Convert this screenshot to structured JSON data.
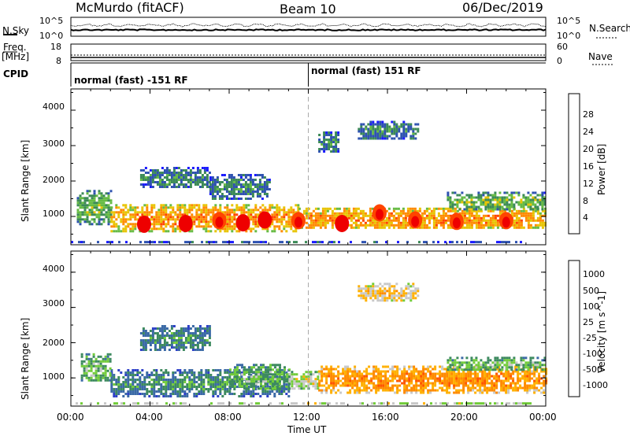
{
  "header": {
    "station": "McMurdo (fitACF)",
    "beam": "Beam 10",
    "date": "06/Dec/2019"
  },
  "strip": {
    "nsky_label": "N.Sky",
    "nsky_ticks": [
      "10^5",
      "10^0"
    ],
    "nsearch_label": "N.Search",
    "nsearch_ticks": [
      "10^5",
      "10^0"
    ],
    "freq_label": "Freq.",
    "freq_unit": "[MHz]",
    "freq_ticks": [
      "18",
      "8"
    ],
    "nave_label": "Nave",
    "nave_ticks": [
      "60",
      "0"
    ],
    "cpid_label": "CPID",
    "cpid_segments": [
      {
        "text": "normal (fast) -151 RF",
        "start_hour": 0
      },
      {
        "text": "normal (fast) 151 RF",
        "start_hour": 12
      }
    ]
  },
  "x_axis": {
    "label": "Time UT",
    "ticks": [
      "00:00",
      "04:00",
      "08:00",
      "12:00",
      "16:00",
      "20:00",
      "00:00"
    ]
  },
  "colors": {
    "power": [
      "#1a1aff",
      "#2e52b0",
      "#3c8a57",
      "#66bb44",
      "#e8c400",
      "#ff8a00",
      "#ff4400",
      "#ee0000"
    ],
    "velocity": [
      "#2d3fc8",
      "#3b6aa6",
      "#3d8a5f",
      "#72cc3a",
      "#c8c8c8",
      "#ffb000",
      "#ff8a00",
      "#ff5500",
      "#ee0000"
    ],
    "dashed_line": "#aaaaaa"
  },
  "chart_data": [
    {
      "type": "heatmap",
      "title": "Power",
      "xlabel": "Time UT",
      "ylabel": "Slant Range [km]",
      "xlim_hours": [
        0,
        24
      ],
      "ylim_km": [
        200,
        4600
      ],
      "y_ticks": [
        "1000",
        "2000",
        "3000",
        "4000"
      ],
      "colorbar": {
        "label": "Power [dB]",
        "ticks": [
          "4",
          "8",
          "12",
          "16",
          "20",
          "24",
          "28"
        ],
        "range": [
          0,
          32
        ]
      },
      "echo_regions": [
        {
          "t0": 0.0,
          "t1": 24.0,
          "r0": 250,
          "r1": 310,
          "level": 2
        },
        {
          "t0": 0.3,
          "t1": 2.0,
          "r0": 800,
          "r1": 1750,
          "level": 3
        },
        {
          "t0": 2.0,
          "t1": 11.5,
          "r0": 600,
          "r1": 1350,
          "level": 5
        },
        {
          "t0": 11.5,
          "t1": 24.0,
          "r0": 650,
          "r1": 1250,
          "level": 5
        },
        {
          "t0": 3.5,
          "t1": 7.0,
          "r0": 1800,
          "r1": 2400,
          "level": 2
        },
        {
          "t0": 7.0,
          "t1": 10.0,
          "r0": 1500,
          "r1": 2200,
          "level": 2
        },
        {
          "t0": 12.5,
          "t1": 13.5,
          "r0": 2800,
          "r1": 3400,
          "level": 2
        },
        {
          "t0": 14.5,
          "t1": 17.5,
          "r0": 3200,
          "r1": 3700,
          "level": 2
        },
        {
          "t0": 19.0,
          "t1": 24.0,
          "r0": 1200,
          "r1": 1700,
          "level": 3
        }
      ],
      "peak_regions": [
        {
          "t": 3.7,
          "r": 780,
          "level": 7
        },
        {
          "t": 5.8,
          "r": 800,
          "level": 7
        },
        {
          "t": 7.5,
          "r": 880,
          "level": 6
        },
        {
          "t": 8.7,
          "r": 820,
          "level": 7
        },
        {
          "t": 9.8,
          "r": 900,
          "level": 7
        },
        {
          "t": 11.5,
          "r": 880,
          "level": 6
        },
        {
          "t": 13.7,
          "r": 800,
          "level": 7
        },
        {
          "t": 15.6,
          "r": 1100,
          "level": 6
        },
        {
          "t": 17.4,
          "r": 900,
          "level": 6
        },
        {
          "t": 19.5,
          "r": 860,
          "level": 6
        },
        {
          "t": 22.0,
          "r": 880,
          "level": 6
        }
      ]
    },
    {
      "type": "heatmap",
      "title": "Velocity",
      "xlabel": "Time UT",
      "ylabel": "Slant Range [km]",
      "xlim_hours": [
        0,
        24
      ],
      "ylim_km": [
        200,
        4600
      ],
      "y_ticks": [
        "1000",
        "2000",
        "3000",
        "4000"
      ],
      "colorbar": {
        "label": "Velocity [m s^-1]",
        "ticks": [
          "1000",
          "500",
          "100",
          "25",
          "-25",
          "-100",
          "-500",
          "-1000"
        ],
        "range": [
          -1200,
          1200
        ]
      },
      "echo_regions": [
        {
          "t0": 0.0,
          "t1": 24.0,
          "r0": 250,
          "r1": 310,
          "level": 5
        },
        {
          "t0": 2.0,
          "t1": 11.0,
          "r0": 500,
          "r1": 1250,
          "level": 2
        },
        {
          "t0": 8.0,
          "t1": 11.0,
          "r0": 700,
          "r1": 1400,
          "level": 3
        },
        {
          "t0": 11.0,
          "t1": 12.5,
          "r0": 700,
          "r1": 1200,
          "level": 4
        },
        {
          "t0": 12.5,
          "t1": 24.0,
          "r0": 600,
          "r1": 1350,
          "level": 6
        },
        {
          "t0": 0.5,
          "t1": 2.0,
          "r0": 900,
          "r1": 1700,
          "level": 3
        },
        {
          "t0": 3.5,
          "t1": 7.0,
          "r0": 1800,
          "r1": 2500,
          "level": 2
        },
        {
          "t0": 14.5,
          "t1": 17.5,
          "r0": 3200,
          "r1": 3700,
          "level": 5
        },
        {
          "t0": 19.0,
          "t1": 24.0,
          "r0": 1200,
          "r1": 1600,
          "level": 3
        }
      ]
    }
  ]
}
